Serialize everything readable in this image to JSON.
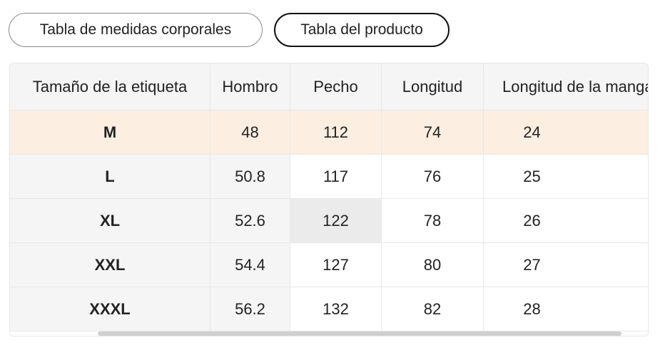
{
  "tabs": {
    "body_measurements": "Tabla de medidas corporales",
    "product_measurements": "Tabla del producto"
  },
  "table": {
    "headers": [
      "Tamaño de la etiqueta",
      "Hombro",
      "Pecho",
      "Longitud",
      "Longitud de la manga"
    ],
    "rows": [
      [
        "M",
        "48",
        "112",
        "74",
        "24"
      ],
      [
        "L",
        "50.8",
        "117",
        "76",
        "25"
      ],
      [
        "XL",
        "52.6",
        "122",
        "78",
        "26"
      ],
      [
        "XXL",
        "54.4",
        "127",
        "80",
        "27"
      ],
      [
        "XXXL",
        "56.2",
        "132",
        "82",
        "28"
      ]
    ],
    "highlighted_row": "M",
    "highlight_color": "#fcefe1"
  }
}
